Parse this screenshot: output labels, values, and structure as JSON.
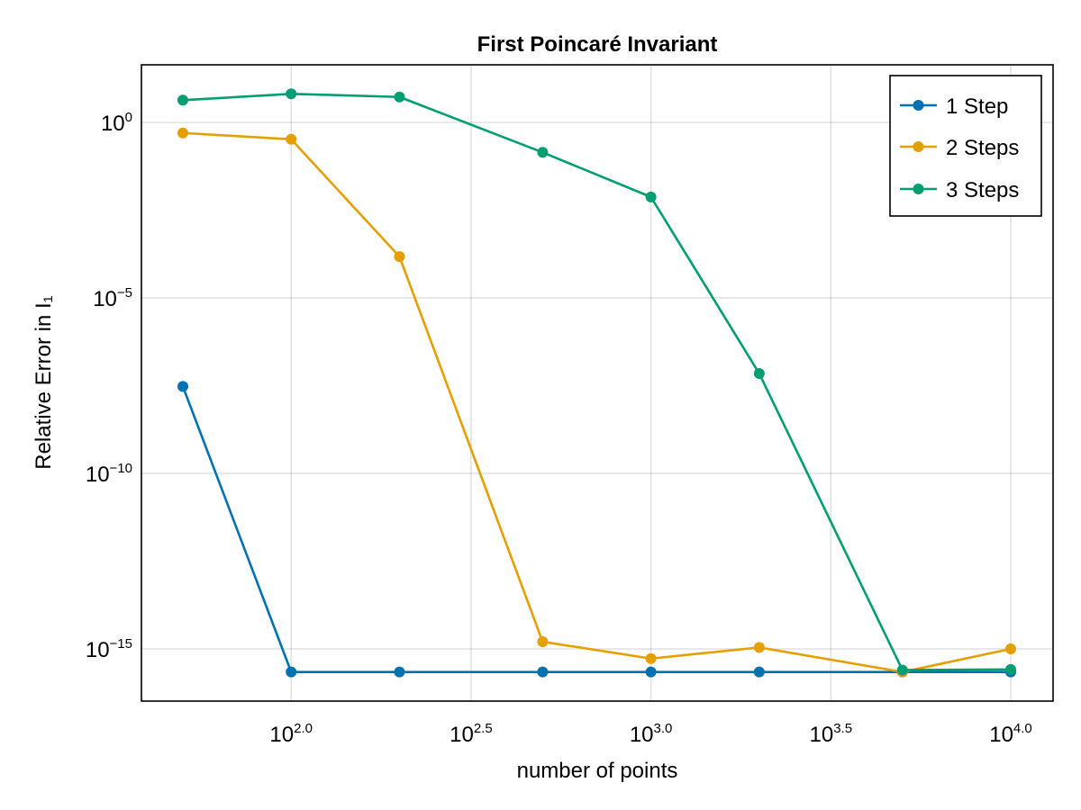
{
  "chart_data": {
    "type": "line",
    "title": "First Poincaré Invariant",
    "xlabel": "number of points",
    "ylabel": "Relative Error in I₁",
    "xscale": "log10",
    "yscale": "log10",
    "x_ticks": [
      {
        "base": "10",
        "exp": "2.0",
        "value": 100
      },
      {
        "base": "10",
        "exp": "2.5",
        "value": 316.23
      },
      {
        "base": "10",
        "exp": "3.0",
        "value": 1000
      },
      {
        "base": "10",
        "exp": "3.5",
        "value": 3162.3
      },
      {
        "base": "10",
        "exp": "4.0",
        "value": 10000
      }
    ],
    "y_ticks": [
      {
        "base": "10",
        "exp": "0",
        "value": 1
      },
      {
        "base": "10",
        "exp": "−5",
        "value": 1e-05
      },
      {
        "base": "10",
        "exp": "−10",
        "value": 1e-10
      },
      {
        "base": "10",
        "exp": "−15",
        "value": 1e-15
      }
    ],
    "grid": true,
    "legend_position": "top-right",
    "x": [
      50,
      100,
      200,
      500,
      1000,
      2000,
      5000,
      10000
    ],
    "series": [
      {
        "name": "1 Step",
        "color": "#0072b2",
        "values": [
          3e-08,
          2.2e-16,
          2.2e-16,
          2.2e-16,
          2.2e-16,
          2.2e-16,
          2.2e-16,
          2.2e-16
        ]
      },
      {
        "name": "2 Steps",
        "color": "#e69f00",
        "values": [
          0.5,
          0.33,
          0.00015,
          1.6e-15,
          5.3e-16,
          1.1e-15,
          2.2e-16,
          1e-15
        ]
      },
      {
        "name": "3 Steps",
        "color": "#009e73",
        "values": [
          4.3,
          6.5,
          5.3,
          0.14,
          0.0075,
          7e-08,
          2.5e-16,
          2.6e-16
        ]
      }
    ]
  }
}
